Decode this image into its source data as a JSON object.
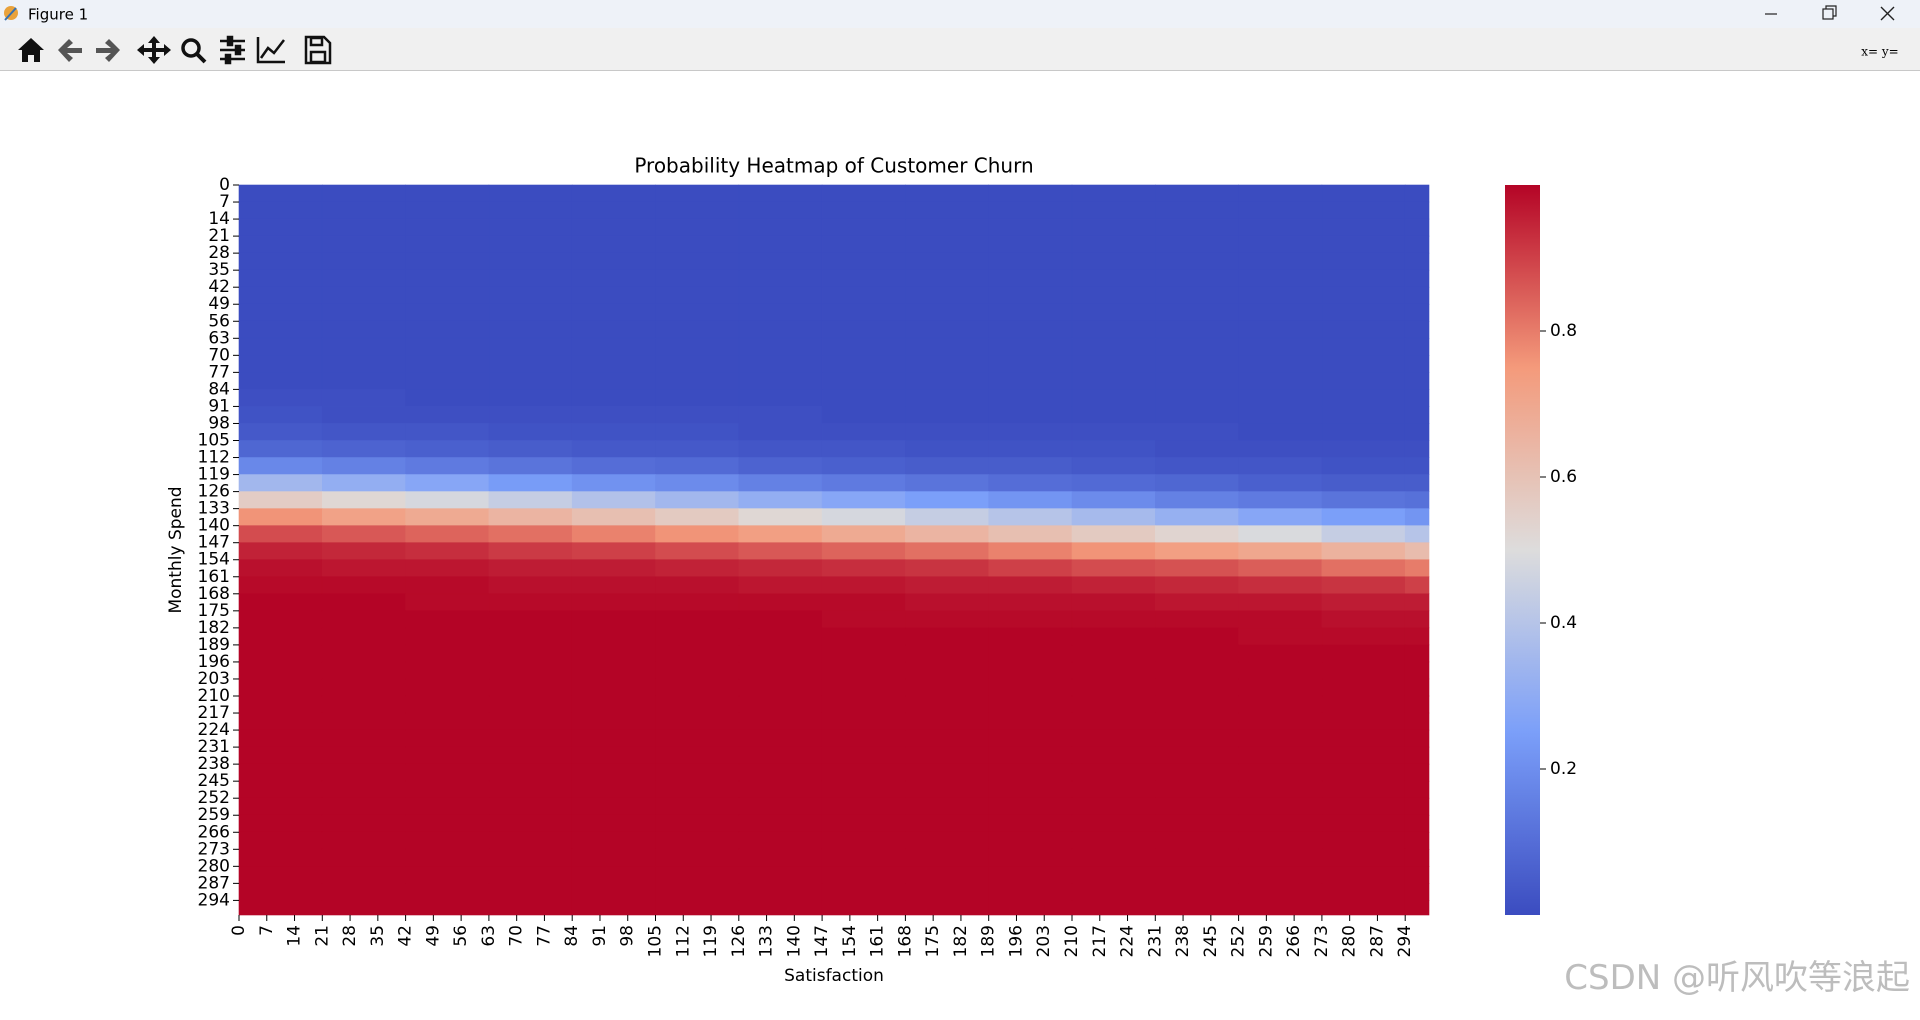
{
  "window": {
    "title": "Figure 1",
    "coords": "x= y="
  },
  "watermark": "CSDN @听风吹等浪起",
  "chart_data": {
    "type": "heatmap",
    "title": "Probability Heatmap of Customer Churn",
    "xlabel": "Satisfaction",
    "ylabel": "Monthly Spend",
    "colormap": "coolwarm",
    "clim": [
      0,
      1
    ],
    "cbar_ticks": [
      0.2,
      0.4,
      0.6,
      0.8
    ],
    "xlim": [
      0,
      300
    ],
    "ylim": [
      300,
      0
    ],
    "xticks": [
      0,
      7,
      14,
      21,
      28,
      35,
      42,
      49,
      56,
      63,
      70,
      77,
      84,
      91,
      98,
      105,
      112,
      119,
      126,
      133,
      140,
      147,
      154,
      161,
      168,
      175,
      182,
      189,
      196,
      203,
      210,
      217,
      224,
      231,
      238,
      245,
      252,
      259,
      266,
      273,
      280,
      287,
      294
    ],
    "yticks": [
      0,
      7,
      14,
      21,
      28,
      35,
      42,
      49,
      56,
      63,
      70,
      77,
      84,
      91,
      98,
      105,
      112,
      119,
      126,
      133,
      140,
      147,
      154,
      161,
      168,
      175,
      182,
      189,
      196,
      203,
      210,
      217,
      224,
      231,
      238,
      245,
      252,
      259,
      266,
      273,
      280,
      287,
      294
    ],
    "x": [
      0,
      21,
      42,
      63,
      84,
      105,
      126,
      147,
      168,
      189,
      210,
      231,
      252,
      273,
      294
    ],
    "y": [
      0,
      7,
      14,
      21,
      28,
      35,
      42,
      49,
      56,
      63,
      70,
      77,
      84,
      91,
      98,
      105,
      112,
      119,
      126,
      133,
      140,
      147,
      154,
      161,
      168,
      175,
      182,
      189,
      196,
      203,
      210,
      217,
      224,
      231,
      238,
      245,
      252,
      259,
      266,
      273,
      280,
      287,
      294
    ],
    "z": [
      [
        0,
        0,
        0,
        0,
        0,
        0,
        0,
        0,
        0,
        0,
        0,
        0,
        0,
        0,
        0
      ],
      [
        0,
        0,
        0,
        0,
        0,
        0,
        0,
        0,
        0,
        0,
        0,
        0,
        0,
        0,
        0
      ],
      [
        0,
        0,
        0,
        0,
        0,
        0,
        0,
        0,
        0,
        0,
        0,
        0,
        0,
        0,
        0
      ],
      [
        0,
        0,
        0,
        0,
        0,
        0,
        0,
        0,
        0,
        0,
        0,
        0,
        0,
        0,
        0
      ],
      [
        0,
        0,
        0,
        0,
        0,
        0,
        0,
        0,
        0,
        0,
        0,
        0,
        0,
        0,
        0
      ],
      [
        0,
        0,
        0,
        0,
        0,
        0,
        0,
        0,
        0,
        0,
        0,
        0,
        0,
        0,
        0
      ],
      [
        0,
        0,
        0,
        0,
        0,
        0,
        0,
        0,
        0,
        0,
        0,
        0,
        0,
        0,
        0
      ],
      [
        0,
        0,
        0,
        0,
        0,
        0,
        0,
        0,
        0,
        0,
        0,
        0,
        0,
        0,
        0
      ],
      [
        0,
        0,
        0,
        0,
        0,
        0,
        0,
        0,
        0,
        0,
        0,
        0,
        0,
        0,
        0
      ],
      [
        0,
        0,
        0,
        0,
        0,
        0,
        0,
        0,
        0,
        0,
        0,
        0,
        0,
        0,
        0
      ],
      [
        0,
        0,
        0,
        0,
        0,
        0,
        0,
        0,
        0,
        0,
        0,
        0,
        0,
        0,
        0
      ],
      [
        0,
        0,
        0,
        0,
        0,
        0,
        0,
        0,
        0,
        0,
        0,
        0,
        0,
        0,
        0
      ],
      [
        0.01,
        0.01,
        0,
        0,
        0,
        0,
        0,
        0,
        0,
        0,
        0,
        0,
        0,
        0,
        0
      ],
      [
        0.02,
        0.01,
        0.01,
        0.01,
        0.01,
        0.01,
        0.01,
        0,
        0,
        0,
        0,
        0,
        0,
        0,
        0
      ],
      [
        0.04,
        0.03,
        0.03,
        0.02,
        0.02,
        0.02,
        0.01,
        0.01,
        0.01,
        0.01,
        0.01,
        0.01,
        0,
        0,
        0
      ],
      [
        0.08,
        0.07,
        0.06,
        0.05,
        0.04,
        0.04,
        0.03,
        0.03,
        0.02,
        0.02,
        0.02,
        0.01,
        0.01,
        0.01,
        0.01
      ],
      [
        0.18,
        0.16,
        0.14,
        0.12,
        0.1,
        0.09,
        0.07,
        0.06,
        0.05,
        0.05,
        0.04,
        0.03,
        0.03,
        0.02,
        0.02
      ],
      [
        0.35,
        0.31,
        0.28,
        0.24,
        0.21,
        0.19,
        0.16,
        0.14,
        0.12,
        0.1,
        0.09,
        0.08,
        0.06,
        0.05,
        0.05
      ],
      [
        0.56,
        0.52,
        0.48,
        0.44,
        0.39,
        0.35,
        0.31,
        0.28,
        0.25,
        0.22,
        0.19,
        0.16,
        0.14,
        0.12,
        0.11
      ],
      [
        0.76,
        0.72,
        0.69,
        0.65,
        0.61,
        0.57,
        0.52,
        0.48,
        0.44,
        0.4,
        0.36,
        0.32,
        0.28,
        0.25,
        0.22
      ],
      [
        0.88,
        0.86,
        0.84,
        0.82,
        0.79,
        0.76,
        0.73,
        0.69,
        0.65,
        0.61,
        0.57,
        0.53,
        0.49,
        0.44,
        0.4
      ],
      [
        0.95,
        0.94,
        0.93,
        0.91,
        0.9,
        0.88,
        0.86,
        0.84,
        0.82,
        0.79,
        0.76,
        0.73,
        0.7,
        0.66,
        0.62
      ],
      [
        0.98,
        0.97,
        0.97,
        0.96,
        0.96,
        0.95,
        0.94,
        0.93,
        0.92,
        0.9,
        0.88,
        0.87,
        0.85,
        0.82,
        0.8
      ],
      [
        0.99,
        0.99,
        0.99,
        0.98,
        0.98,
        0.98,
        0.97,
        0.97,
        0.96,
        0.96,
        0.95,
        0.94,
        0.93,
        0.92,
        0.9
      ],
      [
        1,
        1,
        0.99,
        0.99,
        0.99,
        0.99,
        0.99,
        0.99,
        0.98,
        0.98,
        0.98,
        0.97,
        0.97,
        0.96,
        0.96
      ],
      [
        1,
        1,
        1,
        1,
        1,
        1,
        1,
        0.99,
        0.99,
        0.99,
        0.99,
        0.99,
        0.99,
        0.98,
        0.98
      ],
      [
        1,
        1,
        1,
        1,
        1,
        1,
        1,
        1,
        1,
        1,
        1,
        1,
        0.99,
        0.99,
        0.99
      ],
      [
        1,
        1,
        1,
        1,
        1,
        1,
        1,
        1,
        1,
        1,
        1,
        1,
        1,
        1,
        1
      ],
      [
        1,
        1,
        1,
        1,
        1,
        1,
        1,
        1,
        1,
        1,
        1,
        1,
        1,
        1,
        1
      ],
      [
        1,
        1,
        1,
        1,
        1,
        1,
        1,
        1,
        1,
        1,
        1,
        1,
        1,
        1,
        1
      ],
      [
        1,
        1,
        1,
        1,
        1,
        1,
        1,
        1,
        1,
        1,
        1,
        1,
        1,
        1,
        1
      ],
      [
        1,
        1,
        1,
        1,
        1,
        1,
        1,
        1,
        1,
        1,
        1,
        1,
        1,
        1,
        1
      ],
      [
        1,
        1,
        1,
        1,
        1,
        1,
        1,
        1,
        1,
        1,
        1,
        1,
        1,
        1,
        1
      ],
      [
        1,
        1,
        1,
        1,
        1,
        1,
        1,
        1,
        1,
        1,
        1,
        1,
        1,
        1,
        1
      ],
      [
        1,
        1,
        1,
        1,
        1,
        1,
        1,
        1,
        1,
        1,
        1,
        1,
        1,
        1,
        1
      ],
      [
        1,
        1,
        1,
        1,
        1,
        1,
        1,
        1,
        1,
        1,
        1,
        1,
        1,
        1,
        1
      ],
      [
        1,
        1,
        1,
        1,
        1,
        1,
        1,
        1,
        1,
        1,
        1,
        1,
        1,
        1,
        1
      ],
      [
        1,
        1,
        1,
        1,
        1,
        1,
        1,
        1,
        1,
        1,
        1,
        1,
        1,
        1,
        1
      ],
      [
        1,
        1,
        1,
        1,
        1,
        1,
        1,
        1,
        1,
        1,
        1,
        1,
        1,
        1,
        1
      ],
      [
        1,
        1,
        1,
        1,
        1,
        1,
        1,
        1,
        1,
        1,
        1,
        1,
        1,
        1,
        1
      ],
      [
        1,
        1,
        1,
        1,
        1,
        1,
        1,
        1,
        1,
        1,
        1,
        1,
        1,
        1,
        1
      ],
      [
        1,
        1,
        1,
        1,
        1,
        1,
        1,
        1,
        1,
        1,
        1,
        1,
        1,
        1,
        1
      ],
      [
        1,
        1,
        1,
        1,
        1,
        1,
        1,
        1,
        1,
        1,
        1,
        1,
        1,
        1,
        1
      ]
    ]
  }
}
